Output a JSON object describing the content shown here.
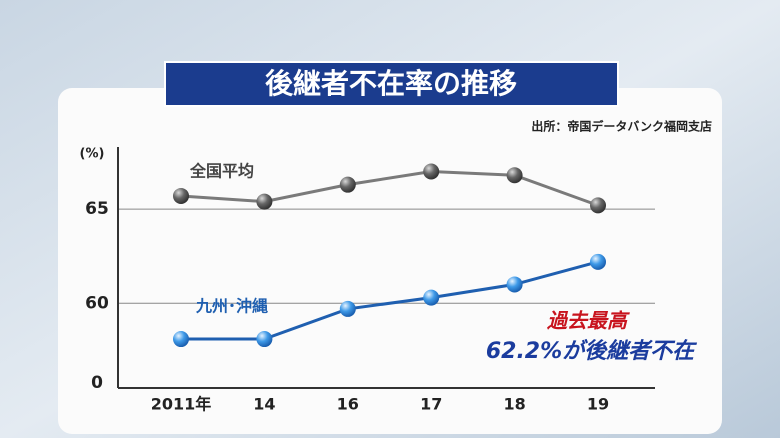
{
  "chart_data": {
    "type": "line",
    "title": "後継者不在率の推移",
    "source": "出所：帝国データバンク福岡支店",
    "y_unit": "(%)",
    "y_origin_label": "0",
    "categories": [
      "2011年",
      "14",
      "16",
      "17",
      "18",
      "19"
    ],
    "series": [
      {
        "name": "全国平均",
        "color": "#7a7a7a",
        "values": [
          65.7,
          65.4,
          66.3,
          67.0,
          66.8,
          65.2
        ]
      },
      {
        "name": "九州･沖縄",
        "color": "#1f5fb0",
        "values": [
          58.1,
          58.1,
          59.7,
          60.3,
          61.0,
          62.2
        ]
      }
    ],
    "ylim": [
      55.5,
      68.3
    ],
    "yticks": [
      60,
      65
    ],
    "grid": true,
    "annotations": [
      "過去最高",
      "62.2%が後継者不在"
    ]
  }
}
